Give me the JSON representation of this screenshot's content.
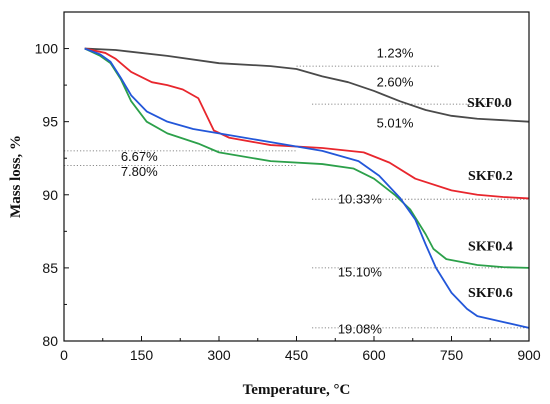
{
  "chart_data": {
    "type": "line",
    "xlabel": "Temperature, °C",
    "ylabel": "Mass loss, %",
    "xlim": [
      0,
      900
    ],
    "ylim": [
      80,
      102.5
    ],
    "x_ticks": [
      "0",
      "150",
      "300",
      "450",
      "600",
      "750",
      "900"
    ],
    "x_tick_values": [
      0,
      150,
      300,
      450,
      600,
      750,
      900
    ],
    "y_ticks": [
      "80",
      "85",
      "90",
      "95",
      "100"
    ],
    "y_tick_values": [
      80,
      85,
      90,
      95,
      100
    ],
    "grid": false,
    "series": [
      {
        "name": "SKF0.0",
        "color": "#4a4a4a",
        "points": [
          [
            40,
            100
          ],
          [
            100,
            99.9
          ],
          [
            200,
            99.5
          ],
          [
            300,
            99.0
          ],
          [
            400,
            98.8
          ],
          [
            450,
            98.6
          ],
          [
            500,
            98.1
          ],
          [
            550,
            97.7
          ],
          [
            600,
            97.1
          ],
          [
            650,
            96.4
          ],
          [
            700,
            95.8
          ],
          [
            750,
            95.4
          ],
          [
            800,
            95.2
          ],
          [
            850,
            95.1
          ],
          [
            900,
            95.0
          ]
        ]
      },
      {
        "name": "SKF0.2",
        "color": "#e8262d",
        "points": [
          [
            40,
            100
          ],
          [
            80,
            99.7
          ],
          [
            100,
            99.3
          ],
          [
            130,
            98.4
          ],
          [
            170,
            97.7
          ],
          [
            200,
            97.5
          ],
          [
            230,
            97.2
          ],
          [
            260,
            96.6
          ],
          [
            275,
            95.5
          ],
          [
            290,
            94.4
          ],
          [
            320,
            93.9
          ],
          [
            400,
            93.4
          ],
          [
            500,
            93.2
          ],
          [
            580,
            92.9
          ],
          [
            630,
            92.2
          ],
          [
            680,
            91.1
          ],
          [
            750,
            90.3
          ],
          [
            800,
            90.0
          ],
          [
            850,
            89.85
          ],
          [
            900,
            89.75
          ]
        ]
      },
      {
        "name": "SKF0.4",
        "color": "#2ca04a",
        "points": [
          [
            40,
            100
          ],
          [
            70,
            99.5
          ],
          [
            90,
            99.0
          ],
          [
            110,
            97.9
          ],
          [
            130,
            96.4
          ],
          [
            160,
            95.0
          ],
          [
            200,
            94.2
          ],
          [
            260,
            93.5
          ],
          [
            300,
            92.9
          ],
          [
            400,
            92.3
          ],
          [
            500,
            92.1
          ],
          [
            560,
            91.8
          ],
          [
            600,
            91.1
          ],
          [
            640,
            90.0
          ],
          [
            670,
            89.0
          ],
          [
            700,
            87.3
          ],
          [
            715,
            86.3
          ],
          [
            740,
            85.6
          ],
          [
            800,
            85.2
          ],
          [
            850,
            85.05
          ],
          [
            900,
            85.0
          ]
        ]
      },
      {
        "name": "SKF0.6",
        "color": "#2357d9",
        "points": [
          [
            40,
            100
          ],
          [
            70,
            99.6
          ],
          [
            90,
            99.1
          ],
          [
            110,
            98.0
          ],
          [
            130,
            96.8
          ],
          [
            160,
            95.7
          ],
          [
            200,
            95.0
          ],
          [
            250,
            94.5
          ],
          [
            300,
            94.2
          ],
          [
            400,
            93.6
          ],
          [
            500,
            93.0
          ],
          [
            570,
            92.3
          ],
          [
            610,
            91.3
          ],
          [
            650,
            89.8
          ],
          [
            680,
            88.3
          ],
          [
            700,
            86.6
          ],
          [
            720,
            85.0
          ],
          [
            750,
            83.3
          ],
          [
            780,
            82.2
          ],
          [
            800,
            81.7
          ],
          [
            850,
            81.3
          ],
          [
            900,
            80.9
          ]
        ]
      }
    ],
    "annotations": [
      {
        "text": "1.23%",
        "x": 605,
        "y": 99.4
      },
      {
        "text": "2.60%",
        "x": 605,
        "y": 97.4
      },
      {
        "text": "5.01%",
        "x": 605,
        "y": 94.6
      },
      {
        "text": "6.67%",
        "x": 110,
        "y": 92.3
      },
      {
        "text": "7.80%",
        "x": 110,
        "y": 91.3
      },
      {
        "text": "10.33%",
        "x": 530,
        "y": 89.4
      },
      {
        "text": "15.10%",
        "x": 530,
        "y": 84.4
      },
      {
        "text": "19.08%",
        "x": 530,
        "y": 80.5
      }
    ],
    "reference_lines": [
      {
        "y": 98.8,
        "x1": 450,
        "x2": 725
      },
      {
        "y": 96.2,
        "x1": 480,
        "x2": 870
      },
      {
        "y": 93.0,
        "x1": 0,
        "x2": 450
      },
      {
        "y": 92.0,
        "x1": 0,
        "x2": 450
      },
      {
        "y": 89.7,
        "x1": 480,
        "x2": 900
      },
      {
        "y": 85.0,
        "x1": 480,
        "x2": 900
      },
      {
        "y": 80.9,
        "x1": 480,
        "x2": 900
      }
    ],
    "series_labels": [
      {
        "text": "SKF0.0",
        "x": 780,
        "y": 96.0
      },
      {
        "text": "SKF0.2",
        "x": 782,
        "y": 91.0
      },
      {
        "text": "SKF0.4",
        "x": 782,
        "y": 86.2
      },
      {
        "text": "SKF0.6",
        "x": 782,
        "y": 83.0
      }
    ]
  }
}
